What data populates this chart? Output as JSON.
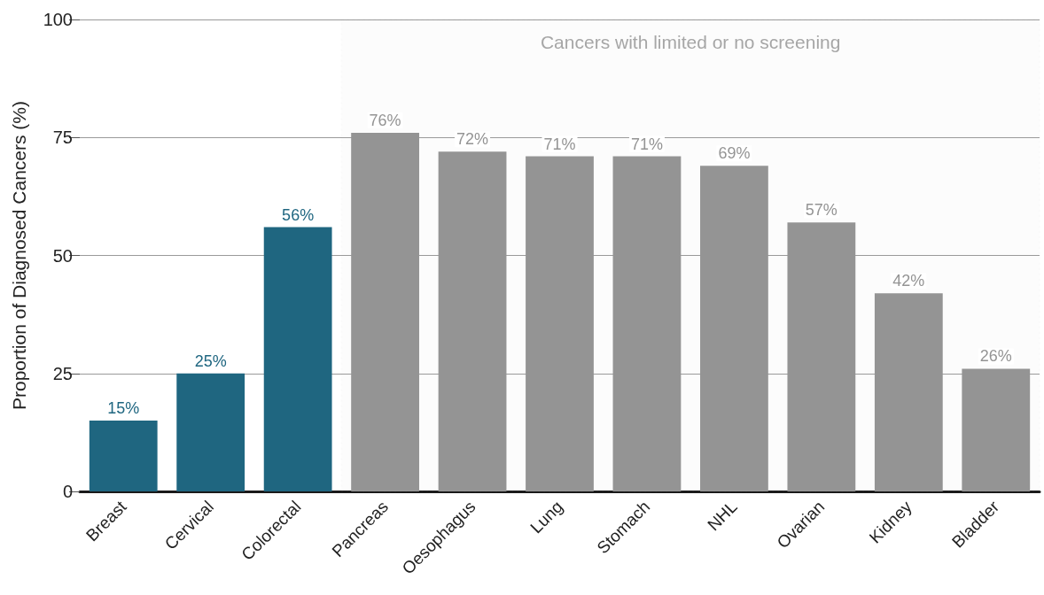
{
  "chart_data": {
    "type": "bar",
    "ylabel": "Proportion of Diagnosed Cancers (%)",
    "categories": [
      "Breast",
      "Cervical",
      "Colorectal",
      "Pancreas",
      "Oesophagus",
      "Lung",
      "Stomach",
      "NHL",
      "Ovarian",
      "Kidney",
      "Bladder"
    ],
    "values": [
      15,
      25,
      56,
      76,
      72,
      71,
      71,
      69,
      57,
      42,
      26
    ],
    "colors": [
      "#1f6680",
      "#1f6680",
      "#1f6680",
      "#949494",
      "#949494",
      "#949494",
      "#949494",
      "#949494",
      "#949494",
      "#949494",
      "#949494"
    ],
    "value_labels": [
      "15%",
      "25%",
      "56%",
      "76%",
      "72%",
      "71%",
      "71%",
      "69%",
      "57%",
      "42%",
      "26%"
    ],
    "ylim": [
      0,
      100
    ],
    "yticks": [
      0,
      25,
      50,
      75,
      100
    ],
    "grid": "y",
    "bands": [
      {
        "axis": "x",
        "from": "Pancreas",
        "to": "Bladder",
        "label": "Cancers with limited or no screening",
        "color": "#a6a6a6"
      }
    ]
  }
}
